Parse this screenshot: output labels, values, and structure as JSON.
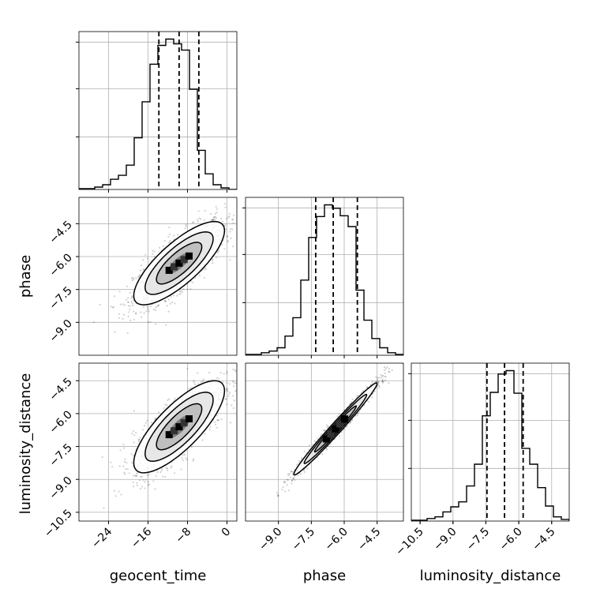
{
  "chart_data": {
    "type": "corner",
    "parameters": [
      "geocent_time",
      "phase",
      "luminosity_distance"
    ],
    "axis_labels": {
      "x": [
        "geocent_time",
        "phase",
        "luminosity_distance"
      ],
      "y": [
        "",
        "phase",
        "luminosity_distance"
      ]
    },
    "ranges": {
      "geocent_time": [
        -30,
        2
      ],
      "phase": [
        -10.5,
        -3.3
      ],
      "luminosity_distance": [
        -10.9,
        -3.7
      ]
    },
    "ticks": {
      "geocent_time": [
        -24,
        -16,
        -8,
        0
      ],
      "phase_x": [
        -9.0,
        -7.5,
        -6.0,
        -4.5
      ],
      "phase_y": [
        -9.0,
        -7.5,
        -6.0,
        -4.5
      ],
      "luminosity_distance_x": [
        -10.5,
        -9.0,
        -7.5,
        -6.0,
        -4.5
      ],
      "luminosity_distance_y": [
        -10.5,
        -9.0,
        -7.5,
        -6.0,
        -4.5
      ]
    },
    "tick_labels": {
      "geocent_time": [
        "−24",
        "−16",
        "−8",
        "0"
      ],
      "phase_x": [
        "−9.0",
        "−7.5",
        "−6.0",
        "−4.5"
      ],
      "phase_y": [
        "−9.0",
        "−7.5",
        "−6.0",
        "−4.5"
      ],
      "luminosity_distance_x": [
        "−10.5",
        "−9.0",
        "−7.5",
        "−6.0",
        "−4.5"
      ],
      "luminosity_distance_y": [
        "−10.5",
        "−9.0",
        "−7.5",
        "−6.0",
        "−4.5"
      ]
    },
    "quantiles": {
      "geocent_time": [
        -13.8,
        -9.7,
        -5.7
      ],
      "phase": [
        -7.3,
        -6.5,
        -5.4
      ],
      "luminosity_distance": [
        -7.45,
        -6.65,
        -5.8
      ]
    },
    "histograms": {
      "geocent_time": {
        "bin_edges": [
          -30.0,
          -28.4,
          -26.8,
          -25.2,
          -23.6,
          -22.0,
          -20.4,
          -18.8,
          -17.2,
          -15.6,
          -14.0,
          -12.4,
          -10.8,
          -9.2,
          -7.6,
          -6.0,
          -4.4,
          -2.8,
          -1.2,
          0.4,
          2.0
        ],
        "counts": [
          1,
          1,
          3,
          6,
          13,
          18,
          31,
          66,
          112,
          160,
          184,
          192,
          186,
          178,
          128,
          50,
          20,
          6,
          2,
          0
        ]
      },
      "phase": {
        "bin_edges": [
          -10.5,
          -10.14,
          -9.78,
          -9.42,
          -9.06,
          -8.7,
          -8.34,
          -7.98,
          -7.62,
          -7.26,
          -6.9,
          -6.54,
          -6.18,
          -5.82,
          -5.46,
          -5.1,
          -4.74,
          -4.38,
          -4.02,
          -3.66,
          -3.3
        ],
        "counts": [
          1,
          1,
          3,
          5,
          9,
          23,
          45,
          90,
          141,
          166,
          180,
          176,
          167,
          154,
          78,
          42,
          20,
          9,
          3,
          1
        ]
      },
      "luminosity_distance": {
        "bin_edges": [
          -10.9,
          -10.54,
          -10.18,
          -9.82,
          -9.46,
          -9.1,
          -8.74,
          -8.38,
          -8.02,
          -7.66,
          -7.3,
          -6.94,
          -6.58,
          -6.22,
          -5.86,
          -5.5,
          -5.14,
          -4.78,
          -4.42,
          -4.06,
          -3.7
        ],
        "counts": [
          1,
          1,
          3,
          5,
          11,
          17,
          23,
          42,
          68,
          126,
          154,
          176,
          180,
          153,
          87,
          68,
          40,
          18,
          5,
          2
        ]
      }
    },
    "pairs": [
      {
        "x": "geocent_time",
        "y": "phase",
        "center": [
          -9.7,
          -6.3
        ],
        "sd": [
          4.6,
          0.95
        ],
        "corr": 0.78
      },
      {
        "x": "geocent_time",
        "y": "luminosity_distance",
        "center": [
          -9.7,
          -6.6
        ],
        "sd": [
          4.6,
          1.05
        ],
        "corr": 0.78
      },
      {
        "x": "phase",
        "y": "luminosity_distance",
        "center": [
          -6.4,
          -6.7
        ],
        "sd": [
          0.95,
          1.05
        ],
        "corr": 0.985
      }
    ]
  }
}
